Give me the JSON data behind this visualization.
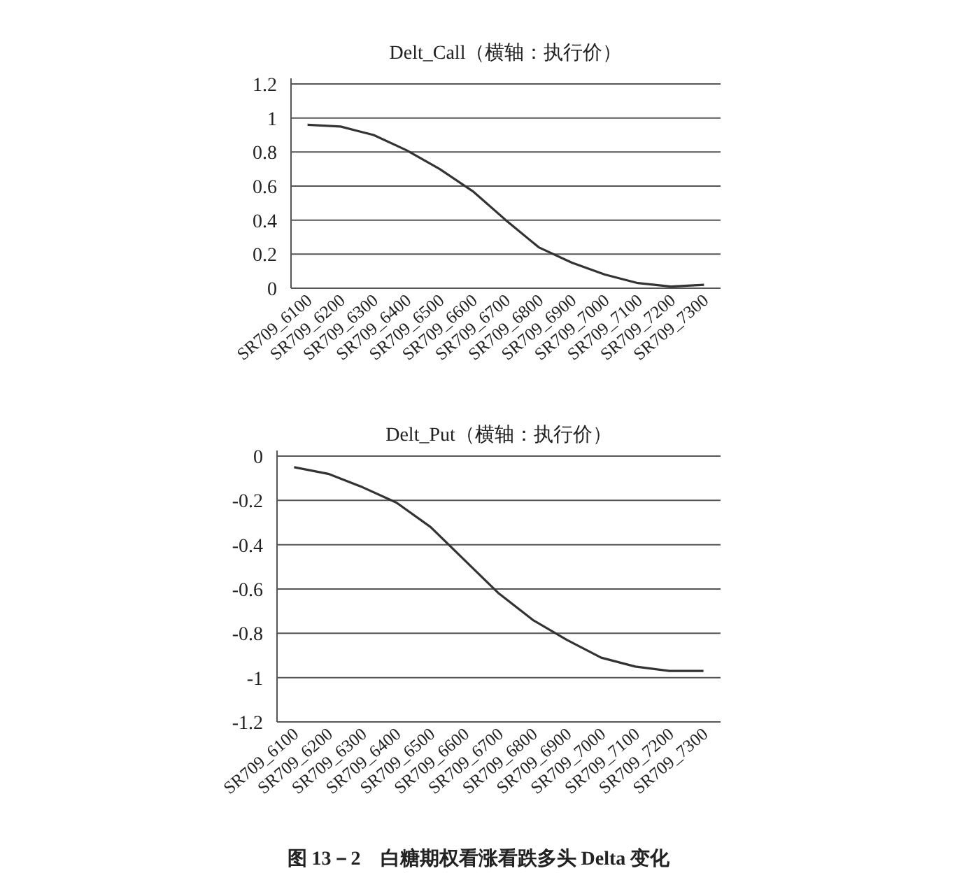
{
  "chart_data": [
    {
      "type": "line",
      "title": "Delt_Call（横轴：执行价）",
      "categories": [
        "SR709_6100",
        "SR709_6200",
        "SR709_6300",
        "SR709_6400",
        "SR709_6500",
        "SR709_6600",
        "SR709_6700",
        "SR709_6800",
        "SR709_6900",
        "SR709_7000",
        "SR709_7100",
        "SR709_7200",
        "SR709_7300"
      ],
      "series": [
        {
          "color": "#333333",
          "values": [
            0.96,
            0.95,
            0.9,
            0.81,
            0.7,
            0.57,
            0.4,
            0.24,
            0.15,
            0.08,
            0.03,
            0.01,
            0.02
          ]
        }
      ],
      "ylim": [
        0,
        1.2
      ],
      "yticks": [
        {
          "value": 0,
          "label": "0"
        },
        0.2,
        0.4,
        0.6,
        0.8,
        {
          "value": 1,
          "label": "1"
        },
        1.2
      ],
      "grid": "y",
      "marker": "none"
    },
    {
      "type": "line",
      "title": "Delt_Put（横轴：执行价）",
      "categories": [
        "SR709_6100",
        "SR709_6200",
        "SR709_6300",
        "SR709_6400",
        "SR709_6500",
        "SR709_6600",
        "SR709_6700",
        "SR709_6800",
        "SR709_6900",
        "SR709_7000",
        "SR709_7100",
        "SR709_7200",
        "SR709_7300"
      ],
      "series": [
        {
          "color": "#333333",
          "values": [
            -0.05,
            -0.08,
            -0.14,
            -0.21,
            -0.32,
            -0.47,
            -0.62,
            -0.74,
            -0.83,
            -0.91,
            -0.95,
            -0.97,
            -0.97
          ]
        }
      ],
      "ylim": [
        -1.2,
        0
      ],
      "yticks": [
        -1.2,
        {
          "value": -1,
          "label": "-1"
        },
        -0.8,
        -0.6,
        -0.4,
        -0.2,
        {
          "value": 0,
          "label": "0"
        }
      ],
      "grid": "y",
      "marker": "none",
      "annotations": [
        "图 13－2　白糖期权看涨看跌多头 Delta 变化"
      ]
    }
  ]
}
